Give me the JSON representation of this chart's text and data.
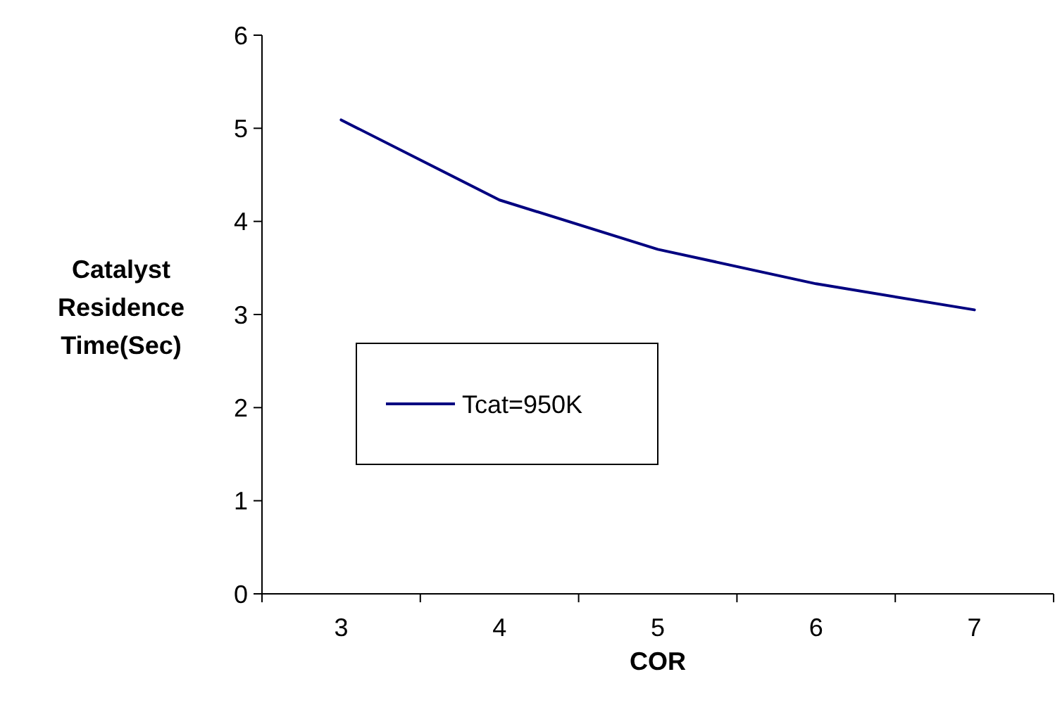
{
  "chart_data": {
    "type": "line",
    "xlabel": "COR",
    "ylabel": "Catalyst Residence Time(Sec)",
    "categories": [
      "3",
      "4",
      "5",
      "6",
      "7"
    ],
    "series": [
      {
        "name": "Tcat=950K",
        "color": "#000080",
        "values": [
          5.09,
          4.23,
          3.7,
          3.33,
          3.05
        ]
      }
    ],
    "ylim": [
      0,
      6
    ],
    "yticks": [
      0,
      1,
      2,
      3,
      4,
      5,
      6
    ],
    "legend": "center left",
    "marker": "none",
    "line_style": "solid",
    "grid": false
  }
}
